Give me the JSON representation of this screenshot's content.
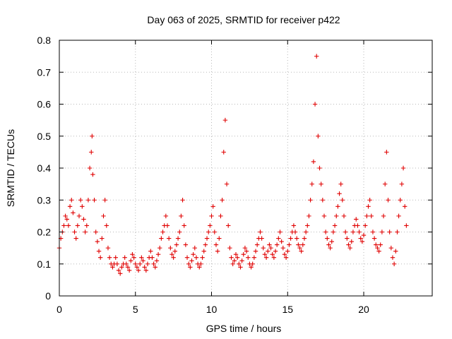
{
  "chart_data": {
    "type": "scatter",
    "title": "Day 063 of 2025, SRMTID for receiver p422",
    "xlabel": "GPS time / hours",
    "ylabel": "SRMTID / TECUs",
    "xlim": [
      0,
      24.5
    ],
    "ylim": [
      0,
      0.8
    ],
    "xticks": [
      0,
      5,
      10,
      15,
      20
    ],
    "xtick_labels": [
      "0",
      "5",
      "10",
      "15",
      "20"
    ],
    "yticks": [
      0,
      0.1,
      0.2,
      0.3,
      0.4,
      0.5,
      0.6,
      0.7,
      0.8
    ],
    "ytick_labels": [
      "0",
      "0.1",
      "0.2",
      "0.3",
      "0.4",
      "0.5",
      "0.6",
      "0.7",
      "0.8"
    ],
    "grid": true,
    "marker": "plus",
    "color": "#e00000",
    "series": [
      {
        "name": "p422",
        "x": [
          0.0,
          0.1,
          0.2,
          0.3,
          0.4,
          0.5,
          0.6,
          0.7,
          0.8,
          0.9,
          1.0,
          1.1,
          1.2,
          1.3,
          1.4,
          1.5,
          1.6,
          1.7,
          1.8,
          1.9,
          2.0,
          2.1,
          2.15,
          2.2,
          2.3,
          2.4,
          2.5,
          2.6,
          2.7,
          2.8,
          2.9,
          3.0,
          3.1,
          3.2,
          3.3,
          3.4,
          3.5,
          3.6,
          3.7,
          3.8,
          3.9,
          4.0,
          4.1,
          4.2,
          4.3,
          4.4,
          4.5,
          4.6,
          4.7,
          4.8,
          4.9,
          5.0,
          5.1,
          5.2,
          5.3,
          5.4,
          5.5,
          5.6,
          5.7,
          5.8,
          5.9,
          6.0,
          6.1,
          6.2,
          6.3,
          6.4,
          6.5,
          6.6,
          6.7,
          6.8,
          6.9,
          7.0,
          7.1,
          7.2,
          7.3,
          7.4,
          7.5,
          7.6,
          7.7,
          7.8,
          7.9,
          8.0,
          8.1,
          8.2,
          8.3,
          8.4,
          8.5,
          8.6,
          8.7,
          8.8,
          8.9,
          9.0,
          9.1,
          9.2,
          9.3,
          9.4,
          9.5,
          9.6,
          9.7,
          9.8,
          9.9,
          10.0,
          10.1,
          10.2,
          10.3,
          10.4,
          10.5,
          10.6,
          10.7,
          10.8,
          10.9,
          11.0,
          11.1,
          11.2,
          11.3,
          11.4,
          11.5,
          11.6,
          11.7,
          11.8,
          11.9,
          12.0,
          12.1,
          12.2,
          12.3,
          12.4,
          12.5,
          12.6,
          12.7,
          12.8,
          12.9,
          13.0,
          13.1,
          13.2,
          13.3,
          13.4,
          13.5,
          13.6,
          13.7,
          13.8,
          13.9,
          14.0,
          14.1,
          14.2,
          14.3,
          14.4,
          14.5,
          14.6,
          14.7,
          14.8,
          14.9,
          15.0,
          15.1,
          15.2,
          15.3,
          15.4,
          15.5,
          15.6,
          15.7,
          15.8,
          15.9,
          16.0,
          16.1,
          16.2,
          16.3,
          16.4,
          16.5,
          16.6,
          16.7,
          16.8,
          16.9,
          17.0,
          17.1,
          17.2,
          17.3,
          17.4,
          17.5,
          17.6,
          17.7,
          17.8,
          17.9,
          18.0,
          18.1,
          18.2,
          18.3,
          18.4,
          18.5,
          18.6,
          18.7,
          18.8,
          18.9,
          19.0,
          19.1,
          19.2,
          19.3,
          19.4,
          19.5,
          19.6,
          19.7,
          19.8,
          19.9,
          20.0,
          20.1,
          20.2,
          20.3,
          20.4,
          20.5,
          20.6,
          20.7,
          20.8,
          20.9,
          21.0,
          21.1,
          21.2,
          21.3,
          21.4,
          21.5,
          21.6,
          21.7,
          21.8,
          21.9,
          22.0,
          22.1,
          22.2,
          22.3,
          22.4,
          22.5,
          22.6,
          22.7,
          22.8
        ],
        "y": [
          0.15,
          0.18,
          0.2,
          0.22,
          0.25,
          0.24,
          0.22,
          0.28,
          0.3,
          0.26,
          0.2,
          0.18,
          0.22,
          0.25,
          0.3,
          0.28,
          0.24,
          0.2,
          0.22,
          0.3,
          0.4,
          0.45,
          0.5,
          0.38,
          0.3,
          0.2,
          0.17,
          0.14,
          0.12,
          0.18,
          0.25,
          0.3,
          0.22,
          0.15,
          0.12,
          0.1,
          0.09,
          0.1,
          0.12,
          0.1,
          0.08,
          0.07,
          0.09,
          0.1,
          0.12,
          0.1,
          0.09,
          0.08,
          0.11,
          0.13,
          0.12,
          0.1,
          0.09,
          0.08,
          0.1,
          0.12,
          0.11,
          0.09,
          0.08,
          0.1,
          0.12,
          0.14,
          0.12,
          0.1,
          0.09,
          0.11,
          0.13,
          0.15,
          0.18,
          0.2,
          0.22,
          0.25,
          0.22,
          0.18,
          0.15,
          0.13,
          0.12,
          0.14,
          0.16,
          0.18,
          0.2,
          0.25,
          0.3,
          0.22,
          0.16,
          0.12,
          0.1,
          0.09,
          0.11,
          0.13,
          0.15,
          0.12,
          0.1,
          0.09,
          0.1,
          0.12,
          0.14,
          0.16,
          0.18,
          0.2,
          0.22,
          0.25,
          0.28,
          0.2,
          0.16,
          0.14,
          0.18,
          0.25,
          0.3,
          0.45,
          0.55,
          0.35,
          0.22,
          0.15,
          0.12,
          0.1,
          0.11,
          0.13,
          0.12,
          0.1,
          0.09,
          0.11,
          0.13,
          0.15,
          0.14,
          0.12,
          0.1,
          0.09,
          0.1,
          0.12,
          0.14,
          0.16,
          0.18,
          0.2,
          0.18,
          0.15,
          0.13,
          0.12,
          0.14,
          0.16,
          0.15,
          0.13,
          0.12,
          0.14,
          0.16,
          0.18,
          0.2,
          0.17,
          0.15,
          0.13,
          0.12,
          0.14,
          0.16,
          0.18,
          0.2,
          0.22,
          0.2,
          0.18,
          0.16,
          0.15,
          0.14,
          0.16,
          0.18,
          0.2,
          0.22,
          0.25,
          0.3,
          0.35,
          0.42,
          0.6,
          0.75,
          0.5,
          0.4,
          0.35,
          0.3,
          0.25,
          0.2,
          0.18,
          0.16,
          0.15,
          0.17,
          0.2,
          0.22,
          0.25,
          0.28,
          0.32,
          0.35,
          0.3,
          0.25,
          0.2,
          0.18,
          0.16,
          0.15,
          0.17,
          0.2,
          0.22,
          0.24,
          0.22,
          0.2,
          0.18,
          0.17,
          0.19,
          0.22,
          0.25,
          0.28,
          0.3,
          0.25,
          0.2,
          0.18,
          0.16,
          0.15,
          0.14,
          0.16,
          0.2,
          0.25,
          0.35,
          0.45,
          0.3,
          0.2,
          0.15,
          0.12,
          0.1,
          0.14,
          0.2,
          0.25,
          0.3,
          0.35,
          0.4,
          0.28,
          0.22
        ]
      }
    ]
  }
}
